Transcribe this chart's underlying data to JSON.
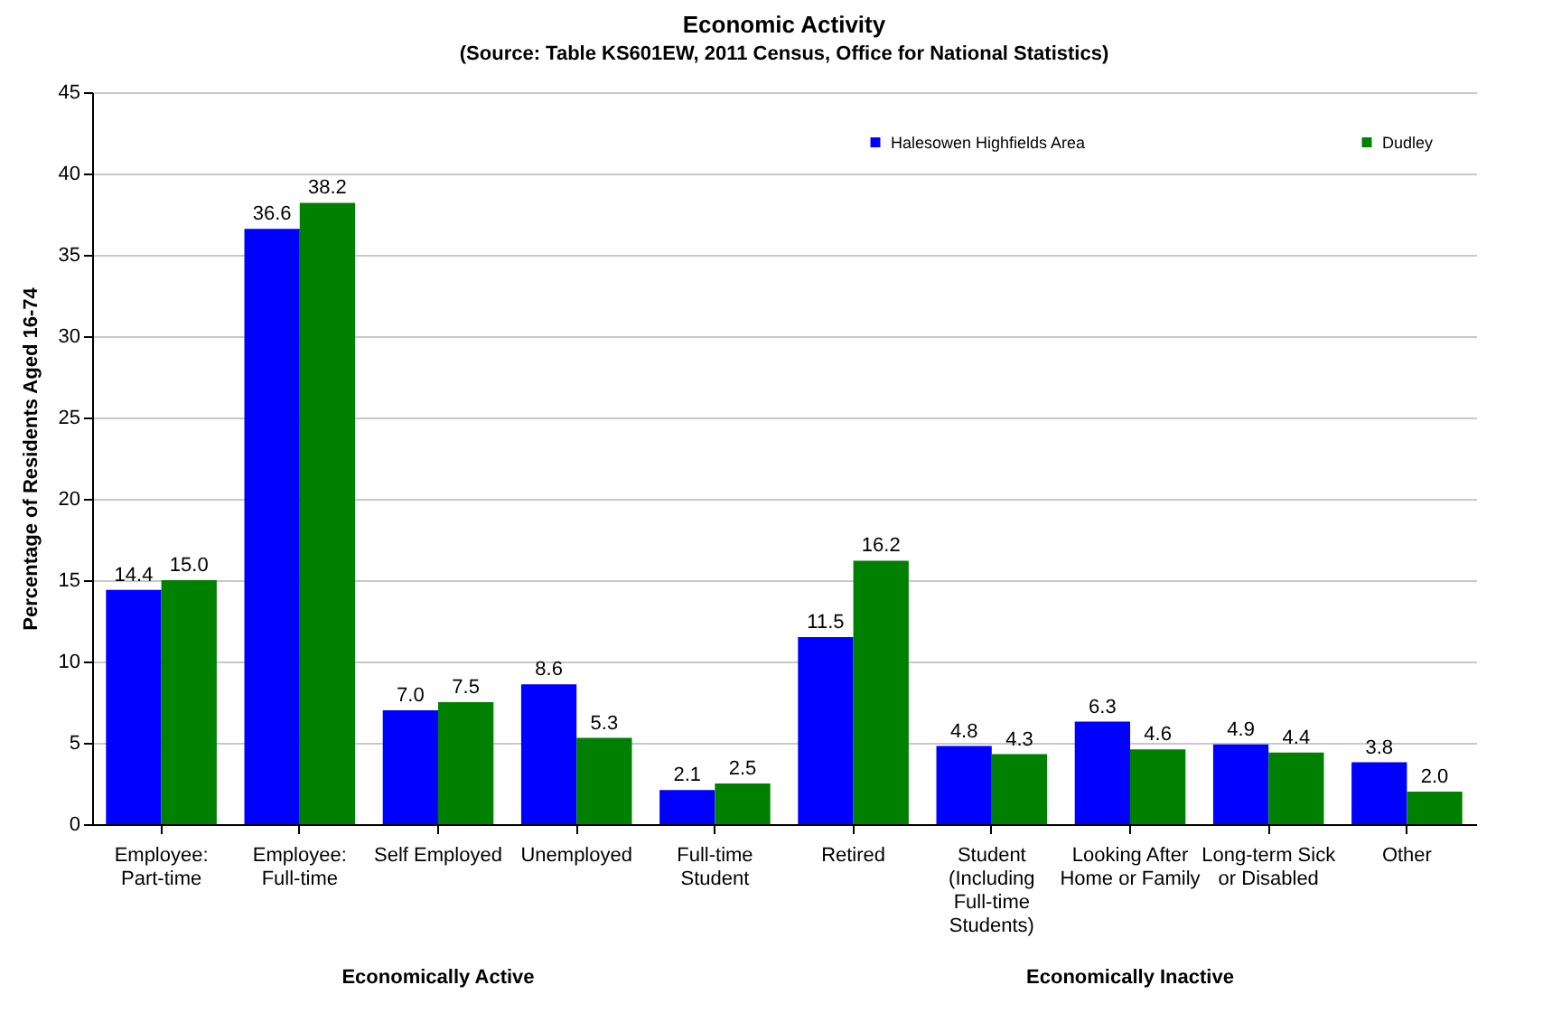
{
  "chart_data": {
    "type": "bar",
    "title": "Economic Activity",
    "subtitle": "(Source: Table KS601EW, 2011 Census, Office for National Statistics)",
    "ylabel": "Percentage of Residents Aged 16-74",
    "categories": [
      "Employee: Part-time",
      "Employee: Full-time",
      "Self Employed",
      "Unemployed",
      "Full-time Student",
      "Retired",
      "Student (Including Full-time Students)",
      "Looking After Home or Family",
      "Long-term Sick or Disabled",
      "Other"
    ],
    "series": [
      {
        "name": "Halesowen Highfields Area",
        "color": "#0000ff",
        "values": [
          14.4,
          36.6,
          7.0,
          8.6,
          2.1,
          11.5,
          4.8,
          6.3,
          4.9,
          3.8
        ],
        "value_labels": [
          "14.4",
          "36.6",
          "7.0",
          "8.6",
          "2.1",
          "11.5",
          "4.8",
          "6.3",
          "4.9",
          "3.8"
        ]
      },
      {
        "name": "Dudley",
        "color": "#008000",
        "values": [
          15.0,
          38.2,
          7.5,
          5.3,
          2.5,
          16.2,
          4.3,
          4.6,
          4.4,
          2.0
        ],
        "value_labels": [
          "15.0",
          "38.2",
          "7.5",
          "5.3",
          "2.5",
          "16.2",
          "4.3",
          "4.6",
          "4.4",
          "2.0"
        ]
      }
    ],
    "ylim": [
      0,
      45
    ],
    "yticks": [
      0,
      5,
      10,
      15,
      20,
      25,
      30,
      35,
      40,
      45
    ],
    "grid": "y",
    "legend": "top right",
    "annotations": [
      "Economically Active",
      "Economically Inactive"
    ]
  }
}
